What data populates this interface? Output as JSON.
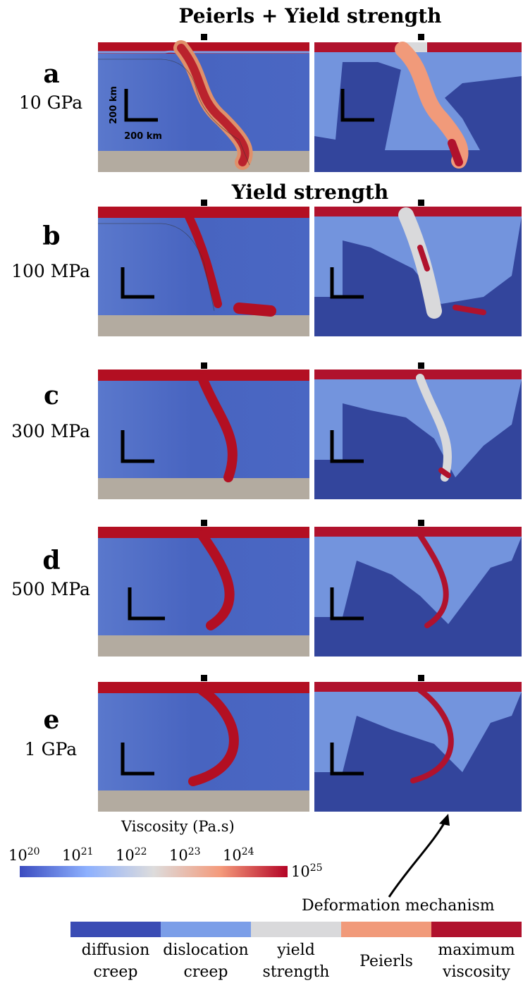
{
  "headings": {
    "peierls_yield": "Peierls + Yield strength",
    "yield": "Yield strength"
  },
  "rows": [
    {
      "letter": "a",
      "value": "10 GPa"
    },
    {
      "letter": "b",
      "value": "100 MPa"
    },
    {
      "letter": "c",
      "value": "300 MPa"
    },
    {
      "letter": "d",
      "value": "500 MPa"
    },
    {
      "letter": "e",
      "value": "1 GPa"
    }
  ],
  "scale_bar": {
    "vertical_label": "200 km",
    "horizontal_label": "200 km"
  },
  "viscosity_colorbar": {
    "title": "Viscosity (Pa.s)",
    "base": "10",
    "exponents": [
      "20",
      "21",
      "22",
      "23",
      "24",
      "25"
    ],
    "colors": [
      "#3b4cc0",
      "#8db0fe",
      "#dddcdc",
      "#f49a7b",
      "#b40426"
    ]
  },
  "mechanism_legend": {
    "title": "Deformation mechanism",
    "items": [
      {
        "line1": "diffusion",
        "line2": "creep",
        "color": "#3a4cb4"
      },
      {
        "line1": "dislocation",
        "line2": "creep",
        "color": "#7b9ee8"
      },
      {
        "line1": "yield",
        "line2": "strength",
        "color": "#d9d9db"
      },
      {
        "line1": "Peierls",
        "line2": "",
        "color": "#f19a7a"
      },
      {
        "line1": "maximum",
        "line2": "viscosity",
        "color": "#b0122d"
      }
    ]
  },
  "colors": {
    "mantle_blue": "#4a68c2",
    "lower_layer": "#b3aba0",
    "slab_red": "#b30f22",
    "diffusion_bg": "#33459c"
  }
}
